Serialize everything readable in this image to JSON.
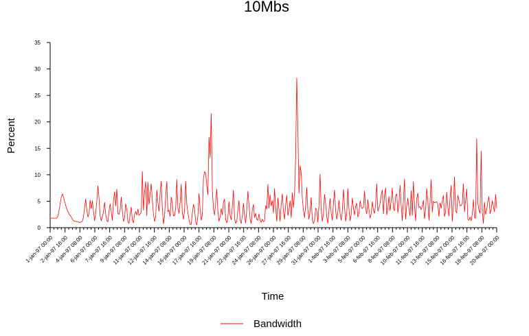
{
  "chart_data": {
    "type": "line",
    "title": "10Mbs",
    "xlabel": "Time",
    "ylabel": "Percent",
    "ylim": [
      0,
      35
    ],
    "y_ticks": [
      0,
      5,
      10,
      15,
      20,
      25,
      30,
      35
    ],
    "x_tick_labels": [
      "1-jan-97 00:00",
      "2-jan-97 16:00",
      "4-jan-97 08:00",
      "6-jan-97 00:00",
      "7-jan-97 16:00",
      "9-jan-97 08:00",
      "11-jan-97 00:00",
      "12-jan-97 16:00",
      "14-jan-97 08:00",
      "16-jan-97 00:00",
      "17-jan-97 16:00",
      "19-jan-97 08:00",
      "21-jan-97 00:00",
      "22-jan-97 16:00",
      "24-jan-97 08:00",
      "26-jan-97 00:00",
      "27-jan-97 16:00",
      "29-jan-97 08:00",
      "31-jan-97 00:00",
      "1-feb-97 16:00",
      "3-feb-97 08:00",
      "5-feb-97 00:00",
      "6-feb-97 16:00",
      "8-feb-97 08:00",
      "10-feb-97 00:00",
      "11-feb-97 16:00",
      "13-feb-97 08:00",
      "15-feb-97 00:00",
      "16-feb-97 16:00",
      "18-feb-97 08:00",
      "20-feb-97 00:00"
    ],
    "grid": false,
    "legend_position": "bottom-center",
    "series": [
      {
        "name": "Bandwidth",
        "color": "#ff0000",
        "x_start": "1-jan-97 00:00",
        "x_end": "20-feb-97 00:00",
        "values": [
          1.8,
          1.8,
          1.8,
          1.8,
          1.8,
          1.8,
          1.8,
          2.2,
          3.2,
          4.5,
          5.7,
          6.4,
          5.8,
          5.0,
          4.2,
          3.5,
          3.0,
          2.6,
          2.3,
          2.0,
          1.6,
          1.3,
          1.2,
          1.2,
          1.1,
          1.1,
          1.0,
          1.0,
          1.1,
          1.2,
          2.0,
          3.8,
          5.4,
          3.4,
          2.0,
          2.6,
          5.2,
          3.6,
          5.1,
          3.1,
          1.3,
          2.8,
          4.9,
          7.9,
          5.6,
          2.2,
          1.3,
          2.1,
          3.0,
          4.8,
          2.6,
          1.3,
          1.1,
          3.1,
          4.5,
          3.0,
          1.4,
          5.2,
          6.8,
          4.1,
          7.3,
          2.7,
          2.5,
          3.4,
          5.8,
          3.0,
          1.2,
          1.8,
          4.5,
          3.5,
          1.1,
          0.8,
          2.6,
          3.9,
          1.4,
          0.9,
          2.5,
          3.1,
          2.4,
          3.5,
          2.3,
          2.6,
          2.9,
          10.6,
          3.3,
          6.9,
          8.7,
          2.3,
          8.6,
          4.4,
          6.4,
          8.3,
          5.3,
          2.5,
          1.2,
          2.0,
          7.1,
          4.7,
          3.1,
          6.6,
          8.8,
          3.7,
          0.7,
          2.2,
          6.0,
          8.7,
          3.0,
          3.3,
          2.1,
          5.8,
          4.6,
          2.2,
          2.3,
          3.6,
          9.1,
          3.8,
          2.7,
          4.8,
          8.2,
          2.7,
          1.6,
          3.3,
          8.8,
          4.5,
          2.8,
          1.5,
          0.6,
          0.6,
          2.8,
          4.4,
          3.5,
          1.1,
          0.5,
          2.2,
          6.5,
          3.5,
          1.4,
          2.4,
          9.3,
          10.6,
          10.3,
          8.0,
          6.2,
          17.1,
          13.2,
          21.6,
          7.3,
          3.5,
          2.4,
          4.7,
          7.3,
          3.1,
          1.2,
          2.0,
          3.6,
          2.4,
          4.8,
          5.4,
          1.5,
          0.9,
          1.9,
          4.9,
          2.3,
          1.5,
          4.1,
          7.1,
          1.8,
          0.8,
          1.2,
          3.4,
          5.1,
          1.4,
          0.8,
          2.3,
          4.6,
          2.2,
          0.9,
          3.3,
          6.9,
          4.3,
          1.7,
          0.8,
          3.4,
          4.4,
          1.9,
          2.7,
          1.6,
          1.4,
          2.6,
          1.4,
          1.0,
          1.6,
          1.1,
          1.3,
          4.2,
          3.5,
          8.2,
          3.7,
          6.2,
          4.1,
          5.1,
          2.8,
          7.4,
          3.8,
          1.2,
          5.6,
          3.3,
          1.2,
          4.4,
          6.4,
          3.1,
          1.6,
          4.3,
          6.1,
          2.3,
          3.3,
          5.1,
          1.9,
          6.6,
          3.8,
          6.4,
          13.3,
          28.3,
          18.4,
          6.5,
          11.7,
          10.4,
          5.6,
          3.3,
          1.9,
          4.2,
          7.6,
          3.4,
          1.6,
          3.2,
          5.7,
          1.5,
          0.8,
          1.3,
          3.7,
          3.3,
          1.0,
          4.2,
          10.1,
          3.4,
          1.2,
          2.5,
          6.3,
          4.5,
          2.1,
          0.8,
          3.3,
          5.5,
          2.8,
          1.4,
          4.6,
          7.1,
          3.2,
          1.6,
          2.9,
          5.2,
          2.6,
          1.4,
          3.0,
          7.2,
          4.0,
          1.2,
          2.6,
          7.4,
          3.5,
          1.3,
          2.5,
          5.6,
          3.7,
          2.4,
          4.1,
          4.6,
          2.0,
          2.7,
          5.1,
          4.0,
          3.6,
          3.9,
          6.9,
          3.6,
          2.6,
          5.3,
          3.4,
          1.8,
          2.6,
          4.9,
          3.3,
          2.7,
          4.4,
          8.3,
          3.1,
          3.8,
          4.5,
          6.2,
          7.1,
          2.6,
          6.2,
          7.5,
          2.4,
          3.6,
          5.9,
          3.2,
          5.2,
          7.5,
          3.6,
          3.2,
          6.0,
          6.4,
          2.8,
          4.6,
          8.0,
          4.2,
          1.3,
          5.3,
          9.2,
          1.6,
          4.2,
          5.6,
          3.6,
          2.2,
          7.0,
          2.3,
          8.7,
          4.1,
          1.3,
          5.5,
          6.5,
          3.8,
          4.0,
          3.4,
          4.1,
          5.2,
          1.7,
          3.4,
          7.4,
          5.1,
          1.4,
          4.9,
          9.1,
          2.9,
          5.0,
          4.7,
          4.8,
          4.9,
          4.4,
          2.1,
          4.7,
          3.7,
          5.0,
          6.1,
          2.1,
          3.0,
          6.7,
          4.1,
          2.2,
          5.6,
          8.0,
          1.2,
          4.2,
          9.6,
          3.2,
          2.8,
          6.1,
          5.2,
          4.1,
          4.2,
          4.6,
          8.3,
          3.0,
          5.1,
          7.3,
          1.6,
          1.4,
          2.0,
          1.3,
          2.5,
          5.3,
          1.9,
          1.8,
          16.8,
          4.7,
          3.3,
          2.7,
          14.5,
          3.0,
          0.8,
          4.8,
          2.5,
          3.4,
          4.9,
          5.9,
          2.6,
          3.4,
          5.1,
          4.1,
          3.0,
          6.3,
          3.7
        ]
      }
    ]
  }
}
